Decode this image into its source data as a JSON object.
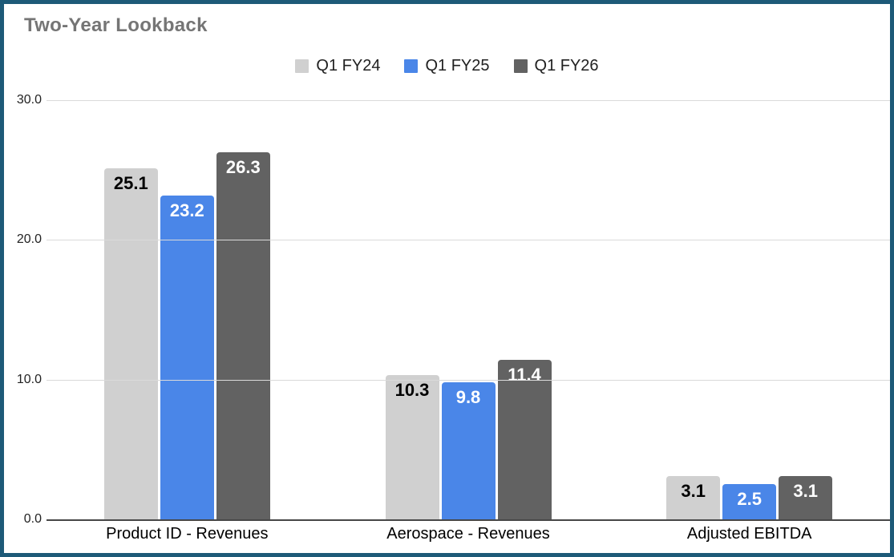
{
  "chart_data": {
    "type": "bar",
    "title": "Two-Year Lookback",
    "categories": [
      "Product ID - Revenues",
      "Aerospace - Revenues",
      "Adjusted EBITDA"
    ],
    "series": [
      {
        "name": "Q1 FY24",
        "color": "#d0d0d0",
        "label_color": "#000000",
        "values": [
          25.1,
          10.3,
          3.1
        ]
      },
      {
        "name": "Q1 FY25",
        "color": "#4a86e8",
        "label_color": "#ffffff",
        "values": [
          23.2,
          9.8,
          2.5
        ]
      },
      {
        "name": "Q1 FY26",
        "color": "#626262",
        "label_color": "#ffffff",
        "values": [
          26.3,
          11.4,
          3.1
        ]
      }
    ],
    "y_ticks": [
      "0.0",
      "10.0",
      "20.0",
      "30.0"
    ],
    "ylim": [
      0,
      30
    ],
    "grid": true,
    "legend_position": "top",
    "value_labels": true
  },
  "style_colors": {
    "frame_border": "#1d5a78",
    "title_text": "#757575",
    "gridline": "#dadada",
    "axis_baseline": "#474747",
    "tick_text": "#222222",
    "legend_text": "#212121"
  }
}
